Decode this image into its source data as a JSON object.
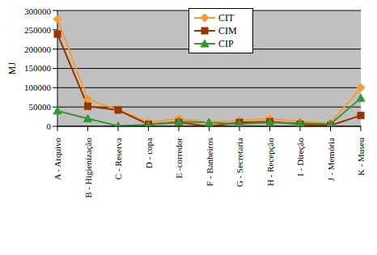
{
  "chart_data": {
    "type": "line",
    "y_label": "MJ",
    "categories": [
      "A - Arquivo",
      "B - Higienização",
      "C - Reserva",
      "D - copa",
      "E -corredor",
      "F - Banheiros",
      "G - Secretaria",
      "H - Recepção",
      "I - Direção",
      "J - Memória",
      "K - Museu"
    ],
    "series": [
      {
        "name": "CIT",
        "color": "#FF9933",
        "marker": "diamond",
        "values": [
          278000,
          70000,
          43000,
          10000,
          20000,
          10000,
          15000,
          20000,
          12000,
          8000,
          100000
        ]
      },
      {
        "name": "CIM",
        "color": "#993300",
        "marker": "square",
        "values": [
          239000,
          52000,
          42000,
          5000,
          10000,
          0,
          10000,
          12000,
          5000,
          2000,
          28000
        ]
      },
      {
        "name": "CIP",
        "color": "#339933",
        "marker": "triangle",
        "values": [
          40000,
          20000,
          1000,
          4000,
          12000,
          10000,
          6000,
          10000,
          8000,
          6000,
          73000
        ]
      }
    ],
    "ylim": [
      0,
      300000
    ],
    "yticks": [
      0,
      50000,
      100000,
      150000,
      200000,
      250000,
      300000
    ],
    "grid": true,
    "legend": "upper center"
  }
}
